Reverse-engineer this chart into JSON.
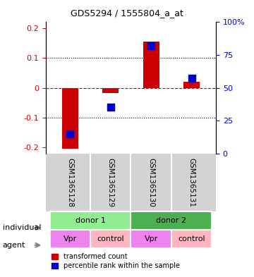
{
  "title": "GDS5294 / 1555804_a_at",
  "samples": [
    "GSM1365128",
    "GSM1365129",
    "GSM1365130",
    "GSM1365131"
  ],
  "red_values": [
    -0.205,
    -0.018,
    0.155,
    0.02
  ],
  "blue_values_pct": [
    15,
    35,
    82,
    57
  ],
  "ylim_left": [
    -0.22,
    0.22
  ],
  "ylim_right": [
    0,
    100
  ],
  "yticks_left": [
    -0.2,
    -0.1,
    0,
    0.1,
    0.2
  ],
  "yticks_right": [
    0,
    25,
    50,
    75,
    100
  ],
  "donor_groups": [
    {
      "label": "donor 1",
      "cols": [
        0,
        1
      ],
      "color": "#90EE90"
    },
    {
      "label": "donor 2",
      "cols": [
        2,
        3
      ],
      "color": "#4CAF50"
    }
  ],
  "agent_groups": [
    {
      "label": "Vpr",
      "col": 0,
      "color": "#EE82EE"
    },
    {
      "label": "control",
      "col": 1,
      "color": "#FFB6C1"
    },
    {
      "label": "Vpr",
      "col": 2,
      "color": "#EE82EE"
    },
    {
      "label": "control",
      "col": 3,
      "color": "#FFB6C1"
    }
  ],
  "bar_color": "#CC0000",
  "dot_color": "#0000CC",
  "bg_color": "#FFFFFF",
  "label_color_left": "#CC0000",
  "label_color_right": "#0000CC",
  "bar_width": 0.4,
  "dot_size": 60
}
